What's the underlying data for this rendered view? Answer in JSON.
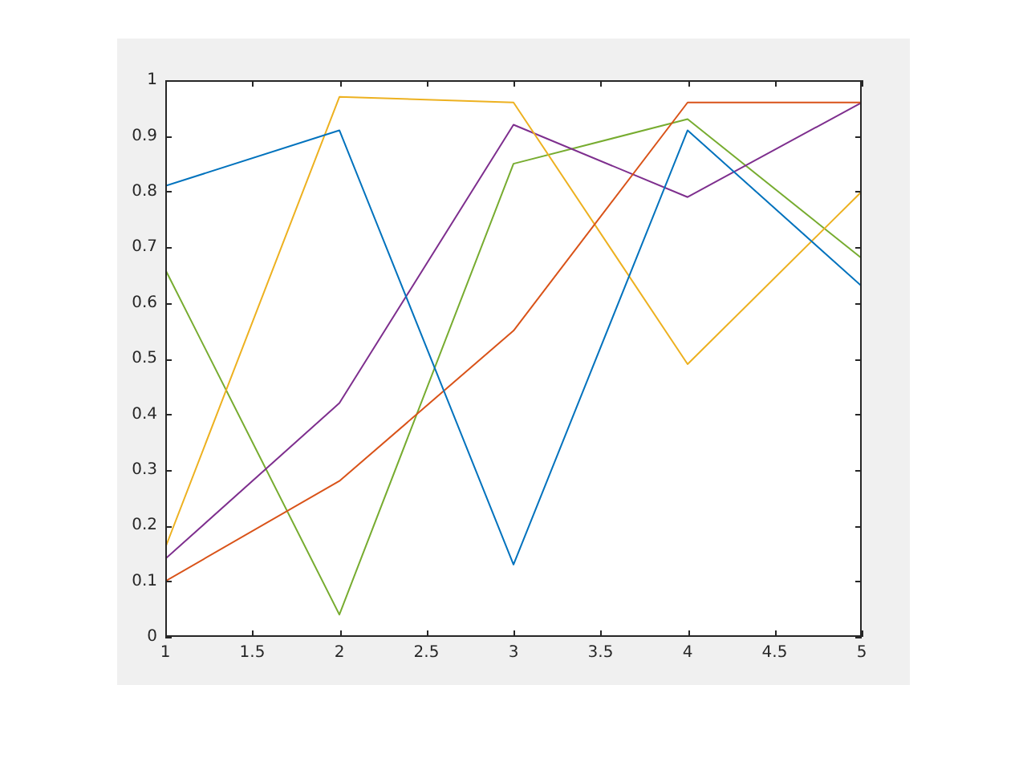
{
  "chart_data": {
    "type": "line",
    "x": [
      1,
      2,
      3,
      4,
      5
    ],
    "series": [
      {
        "color": "#0072bd",
        "values": [
          0.81,
          0.91,
          0.13,
          0.91,
          0.63
        ]
      },
      {
        "color": "#d95319",
        "values": [
          0.1,
          0.28,
          0.55,
          0.96,
          0.96
        ]
      },
      {
        "color": "#edb120",
        "values": [
          0.16,
          0.97,
          0.96,
          0.49,
          0.8
        ]
      },
      {
        "color": "#7e2f8e",
        "values": [
          0.14,
          0.42,
          0.92,
          0.79,
          0.96
        ]
      },
      {
        "color": "#77ac30",
        "values": [
          0.66,
          0.04,
          0.85,
          0.93,
          0.68
        ]
      }
    ],
    "xlim": [
      1,
      5
    ],
    "xticks": [
      1,
      1.5,
      2,
      2.5,
      3,
      3.5,
      4,
      4.5,
      5
    ],
    "ylim": [
      0,
      1
    ],
    "yticks": [
      0,
      0.1,
      0.2,
      0.3,
      0.4,
      0.5,
      0.6,
      0.7,
      0.8,
      0.9,
      1
    ],
    "grid": false,
    "legend": false,
    "marker": "none",
    "line_style": "solid"
  }
}
